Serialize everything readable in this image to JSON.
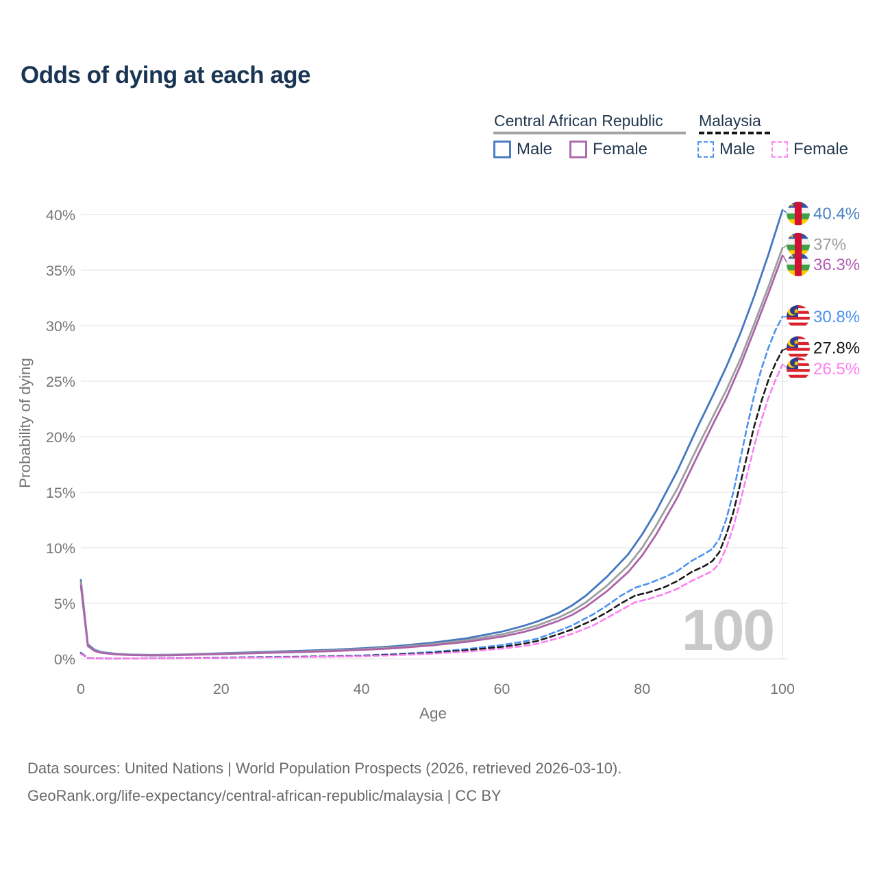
{
  "title": "Odds of dying at each age",
  "legend": {
    "groups": [
      {
        "id": "car",
        "title": "Central African Republic",
        "line_style": "solid",
        "underline_color": "#a3a3a3",
        "items": [
          {
            "label": "Male",
            "color": "#4a7dc4",
            "dashed": false
          },
          {
            "label": "Female",
            "color": "#b06cb0",
            "dashed": false
          }
        ]
      },
      {
        "id": "mys",
        "title": "Malaysia",
        "line_style": "dashed",
        "underline_color": "#161616",
        "items": [
          {
            "label": "Male",
            "color": "#4d92f0",
            "dashed": true
          },
          {
            "label": "Female",
            "color": "#ff85f0",
            "dashed": true
          }
        ]
      }
    ]
  },
  "chart_data": {
    "type": "line",
    "title": "Odds of dying at each age",
    "xlabel": "Age",
    "ylabel": "Probability of dying",
    "xlim": [
      0,
      100
    ],
    "ylim_percent": [
      0,
      40.5
    ],
    "x_ticks": [
      "0",
      "20",
      "40",
      "60",
      "80",
      "100"
    ],
    "x_tick_values": [
      0,
      20,
      40,
      60,
      80,
      100
    ],
    "y_ticks": [
      "0%",
      "5%",
      "10%",
      "15%",
      "20%",
      "25%",
      "30%",
      "35%",
      "40%"
    ],
    "y_tick_values": [
      0,
      5,
      10,
      15,
      20,
      25,
      30,
      35,
      40
    ],
    "grid": "horizontal",
    "watermark": "100",
    "watermark_color": "#c9c9c9",
    "series": [
      {
        "name": "Central African Republic Male",
        "country": "Central African Republic",
        "sex": "Male",
        "flag": "car",
        "color": "#4377c0",
        "label_color": "#4a80c4",
        "dashed": false,
        "end_label": "40.4%",
        "label_pos": 40.1,
        "points": [
          [
            0,
            7.1
          ],
          [
            1,
            1.3
          ],
          [
            2,
            0.8
          ],
          [
            3,
            0.6
          ],
          [
            5,
            0.45
          ],
          [
            7,
            0.38
          ],
          [
            10,
            0.35
          ],
          [
            13,
            0.37
          ],
          [
            15,
            0.4
          ],
          [
            18,
            0.46
          ],
          [
            20,
            0.5
          ],
          [
            25,
            0.6
          ],
          [
            30,
            0.7
          ],
          [
            35,
            0.8
          ],
          [
            40,
            0.95
          ],
          [
            45,
            1.15
          ],
          [
            50,
            1.45
          ],
          [
            55,
            1.85
          ],
          [
            60,
            2.45
          ],
          [
            63,
            2.95
          ],
          [
            65,
            3.35
          ],
          [
            68,
            4.1
          ],
          [
            70,
            4.8
          ],
          [
            72,
            5.7
          ],
          [
            75,
            7.4
          ],
          [
            78,
            9.4
          ],
          [
            80,
            11.2
          ],
          [
            82,
            13.3
          ],
          [
            85,
            16.9
          ],
          [
            88,
            21.0
          ],
          [
            90,
            23.6
          ],
          [
            92,
            26.3
          ],
          [
            94,
            29.3
          ],
          [
            96,
            32.7
          ],
          [
            98,
            36.4
          ],
          [
            100,
            40.4
          ]
        ]
      },
      {
        "name": "Central African Republic Total",
        "country": "Central African Republic",
        "sex": "Both",
        "flag": "car",
        "color": "#9e9e9e",
        "label_color": "#9e9e9e",
        "dashed": false,
        "end_label": "37%",
        "label_pos": 37.3,
        "points": [
          [
            0,
            6.9
          ],
          [
            1,
            1.2
          ],
          [
            2,
            0.75
          ],
          [
            3,
            0.57
          ],
          [
            5,
            0.42
          ],
          [
            7,
            0.36
          ],
          [
            10,
            0.33
          ],
          [
            13,
            0.35
          ],
          [
            15,
            0.37
          ],
          [
            18,
            0.43
          ],
          [
            20,
            0.46
          ],
          [
            25,
            0.55
          ],
          [
            30,
            0.64
          ],
          [
            35,
            0.73
          ],
          [
            40,
            0.87
          ],
          [
            45,
            1.05
          ],
          [
            50,
            1.32
          ],
          [
            55,
            1.68
          ],
          [
            60,
            2.2
          ],
          [
            63,
            2.65
          ],
          [
            65,
            3.0
          ],
          [
            68,
            3.7
          ],
          [
            70,
            4.3
          ],
          [
            72,
            5.1
          ],
          [
            75,
            6.6
          ],
          [
            78,
            8.4
          ],
          [
            80,
            10.0
          ],
          [
            82,
            12.0
          ],
          [
            85,
            15.3
          ],
          [
            88,
            19.2
          ],
          [
            90,
            21.7
          ],
          [
            92,
            24.2
          ],
          [
            94,
            27.0
          ],
          [
            96,
            30.2
          ],
          [
            98,
            33.5
          ],
          [
            100,
            37.0
          ]
        ]
      },
      {
        "name": "Central African Republic Female",
        "country": "Central African Republic",
        "sex": "Female",
        "flag": "car",
        "color": "#ab63a8",
        "label_color": "#b35cb0",
        "dashed": false,
        "end_label": "36.3%",
        "label_pos": 35.5,
        "points": [
          [
            0,
            6.6
          ],
          [
            1,
            1.15
          ],
          [
            2,
            0.7
          ],
          [
            3,
            0.53
          ],
          [
            5,
            0.4
          ],
          [
            7,
            0.34
          ],
          [
            10,
            0.3
          ],
          [
            13,
            0.32
          ],
          [
            15,
            0.35
          ],
          [
            18,
            0.4
          ],
          [
            20,
            0.43
          ],
          [
            25,
            0.51
          ],
          [
            30,
            0.59
          ],
          [
            35,
            0.68
          ],
          [
            40,
            0.8
          ],
          [
            45,
            0.97
          ],
          [
            50,
            1.21
          ],
          [
            55,
            1.53
          ],
          [
            60,
            2.0
          ],
          [
            63,
            2.4
          ],
          [
            65,
            2.75
          ],
          [
            68,
            3.4
          ],
          [
            70,
            3.95
          ],
          [
            72,
            4.7
          ],
          [
            75,
            6.1
          ],
          [
            78,
            7.8
          ],
          [
            80,
            9.3
          ],
          [
            82,
            11.2
          ],
          [
            85,
            14.5
          ],
          [
            88,
            18.4
          ],
          [
            90,
            21.0
          ],
          [
            92,
            23.5
          ],
          [
            94,
            26.4
          ],
          [
            96,
            29.6
          ],
          [
            98,
            32.9
          ],
          [
            100,
            36.3
          ]
        ]
      },
      {
        "name": "Malaysia Male",
        "country": "Malaysia",
        "sex": "Male",
        "flag": "mys",
        "color": "#4d92f0",
        "label_color": "#4a90ee",
        "dashed": true,
        "end_label": "30.8%",
        "label_pos": 30.8,
        "points": [
          [
            0,
            0.55
          ],
          [
            1,
            0.08
          ],
          [
            3,
            0.05
          ],
          [
            5,
            0.045
          ],
          [
            10,
            0.055
          ],
          [
            15,
            0.09
          ],
          [
            20,
            0.12
          ],
          [
            25,
            0.15
          ],
          [
            30,
            0.19
          ],
          [
            35,
            0.24
          ],
          [
            40,
            0.31
          ],
          [
            45,
            0.43
          ],
          [
            50,
            0.62
          ],
          [
            55,
            0.88
          ],
          [
            60,
            1.25
          ],
          [
            63,
            1.55
          ],
          [
            65,
            1.8
          ],
          [
            68,
            2.5
          ],
          [
            70,
            3.0
          ],
          [
            73,
            4.0
          ],
          [
            75,
            4.8
          ],
          [
            77,
            5.7
          ],
          [
            79,
            6.4
          ],
          [
            81,
            6.8
          ],
          [
            83,
            7.3
          ],
          [
            85,
            7.9
          ],
          [
            87,
            8.8
          ],
          [
            89,
            9.5
          ],
          [
            90,
            9.9
          ],
          [
            91,
            10.8
          ],
          [
            92,
            12.6
          ],
          [
            93,
            15.0
          ],
          [
            94,
            18.0
          ],
          [
            95,
            21.0
          ],
          [
            96,
            23.8
          ],
          [
            97,
            26.1
          ],
          [
            98,
            28.0
          ],
          [
            99,
            29.6
          ],
          [
            100,
            30.8
          ]
        ]
      },
      {
        "name": "Malaysia Total",
        "country": "Malaysia",
        "sex": "Both",
        "flag": "mys",
        "color": "#1a1a1a",
        "label_color": "#141414",
        "dashed": true,
        "end_label": "27.8%",
        "label_pos": 28.0,
        "points": [
          [
            0,
            0.5
          ],
          [
            1,
            0.07
          ],
          [
            3,
            0.045
          ],
          [
            5,
            0.04
          ],
          [
            10,
            0.05
          ],
          [
            15,
            0.08
          ],
          [
            20,
            0.1
          ],
          [
            25,
            0.13
          ],
          [
            30,
            0.16
          ],
          [
            35,
            0.21
          ],
          [
            40,
            0.27
          ],
          [
            45,
            0.38
          ],
          [
            50,
            0.54
          ],
          [
            55,
            0.77
          ],
          [
            60,
            1.08
          ],
          [
            63,
            1.35
          ],
          [
            65,
            1.6
          ],
          [
            68,
            2.2
          ],
          [
            70,
            2.65
          ],
          [
            73,
            3.5
          ],
          [
            75,
            4.2
          ],
          [
            77,
            5.0
          ],
          [
            79,
            5.7
          ],
          [
            81,
            6.0
          ],
          [
            83,
            6.4
          ],
          [
            85,
            7.0
          ],
          [
            87,
            7.8
          ],
          [
            89,
            8.4
          ],
          [
            90,
            8.8
          ],
          [
            91,
            9.6
          ],
          [
            92,
            11.2
          ],
          [
            93,
            13.2
          ],
          [
            94,
            15.8
          ],
          [
            95,
            18.4
          ],
          [
            96,
            21.0
          ],
          [
            97,
            23.2
          ],
          [
            98,
            25.1
          ],
          [
            99,
            26.6
          ],
          [
            100,
            27.8
          ]
        ]
      },
      {
        "name": "Malaysia Female",
        "country": "Malaysia",
        "sex": "Female",
        "flag": "mys",
        "color": "#fb80f2",
        "label_color": "#ff7df2",
        "dashed": true,
        "end_label": "26.5%",
        "label_pos": 26.1,
        "points": [
          [
            0,
            0.45
          ],
          [
            1,
            0.06
          ],
          [
            3,
            0.04
          ],
          [
            5,
            0.035
          ],
          [
            10,
            0.042
          ],
          [
            15,
            0.065
          ],
          [
            20,
            0.085
          ],
          [
            25,
            0.11
          ],
          [
            30,
            0.14
          ],
          [
            35,
            0.18
          ],
          [
            40,
            0.24
          ],
          [
            45,
            0.33
          ],
          [
            50,
            0.46
          ],
          [
            55,
            0.65
          ],
          [
            60,
            0.92
          ],
          [
            63,
            1.15
          ],
          [
            65,
            1.35
          ],
          [
            68,
            1.85
          ],
          [
            70,
            2.25
          ],
          [
            73,
            3.0
          ],
          [
            75,
            3.7
          ],
          [
            77,
            4.4
          ],
          [
            79,
            5.1
          ],
          [
            81,
            5.4
          ],
          [
            83,
            5.8
          ],
          [
            85,
            6.3
          ],
          [
            87,
            7.0
          ],
          [
            89,
            7.6
          ],
          [
            90,
            7.9
          ],
          [
            91,
            8.6
          ],
          [
            92,
            10.0
          ],
          [
            93,
            11.9
          ],
          [
            94,
            14.2
          ],
          [
            95,
            16.7
          ],
          [
            96,
            19.2
          ],
          [
            97,
            21.5
          ],
          [
            98,
            23.5
          ],
          [
            99,
            25.1
          ],
          [
            100,
            26.5
          ]
        ]
      }
    ]
  },
  "footer": {
    "line1": "Data sources: United Nations | World Population Prospects (2026, retrieved 2026-03-10).",
    "line2": "GeoRank.org/life-expectancy/central-african-republic/malaysia | CC BY"
  }
}
